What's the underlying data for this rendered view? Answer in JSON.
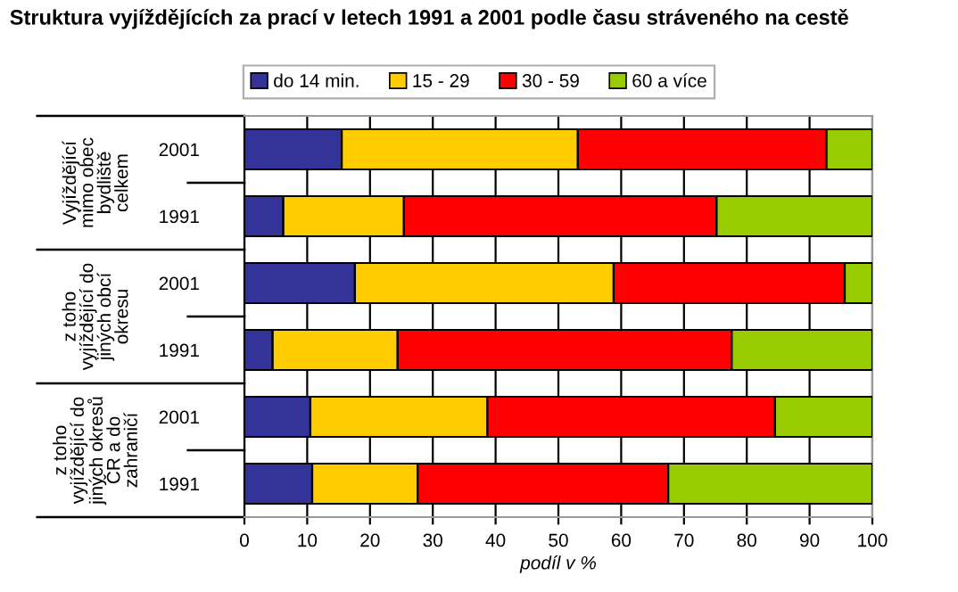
{
  "chart_data": {
    "type": "bar",
    "orientation": "horizontal",
    "stacked": true,
    "title": "Struktura vyjíždějících za prací v letech 1991 a 2001 podle času stráveného na cestě",
    "xlabel": "podíl v %",
    "categories": [
      "2001",
      "1991",
      "2001",
      "1991",
      "2001",
      "1991"
    ],
    "annotations": [
      "Vyjíždějící\nmimo obec\nbydliště\ncelkem",
      "z toho\nvyjíždějící do\njiných obcí\nokresu",
      "z toho\nvyjíždějící do\njiných okresů\nČR a do\nzahraničí"
    ],
    "series": [
      {
        "name": "do 14 min.",
        "color": "#333399",
        "values": [
          15.5,
          6.2,
          17.6,
          4.5,
          10.5,
          10.8
        ]
      },
      {
        "name": "15 - 29",
        "color": "#ffcc00",
        "values": [
          37.6,
          19.2,
          41.2,
          19.9,
          28.2,
          16.8
        ]
      },
      {
        "name": "30 - 59",
        "color": "#ff0000",
        "values": [
          39.6,
          49.8,
          36.8,
          53.2,
          45.8,
          39.9
        ]
      },
      {
        "name": "60 a více",
        "color": "#99cc00",
        "values": [
          7.3,
          24.8,
          4.4,
          22.4,
          15.5,
          32.5
        ]
      }
    ],
    "xlim": [
      0,
      100
    ],
    "xticks": [
      0,
      10,
      20,
      30,
      40,
      50,
      60,
      70,
      80,
      90,
      100
    ],
    "grid": "x",
    "legend": "top"
  }
}
